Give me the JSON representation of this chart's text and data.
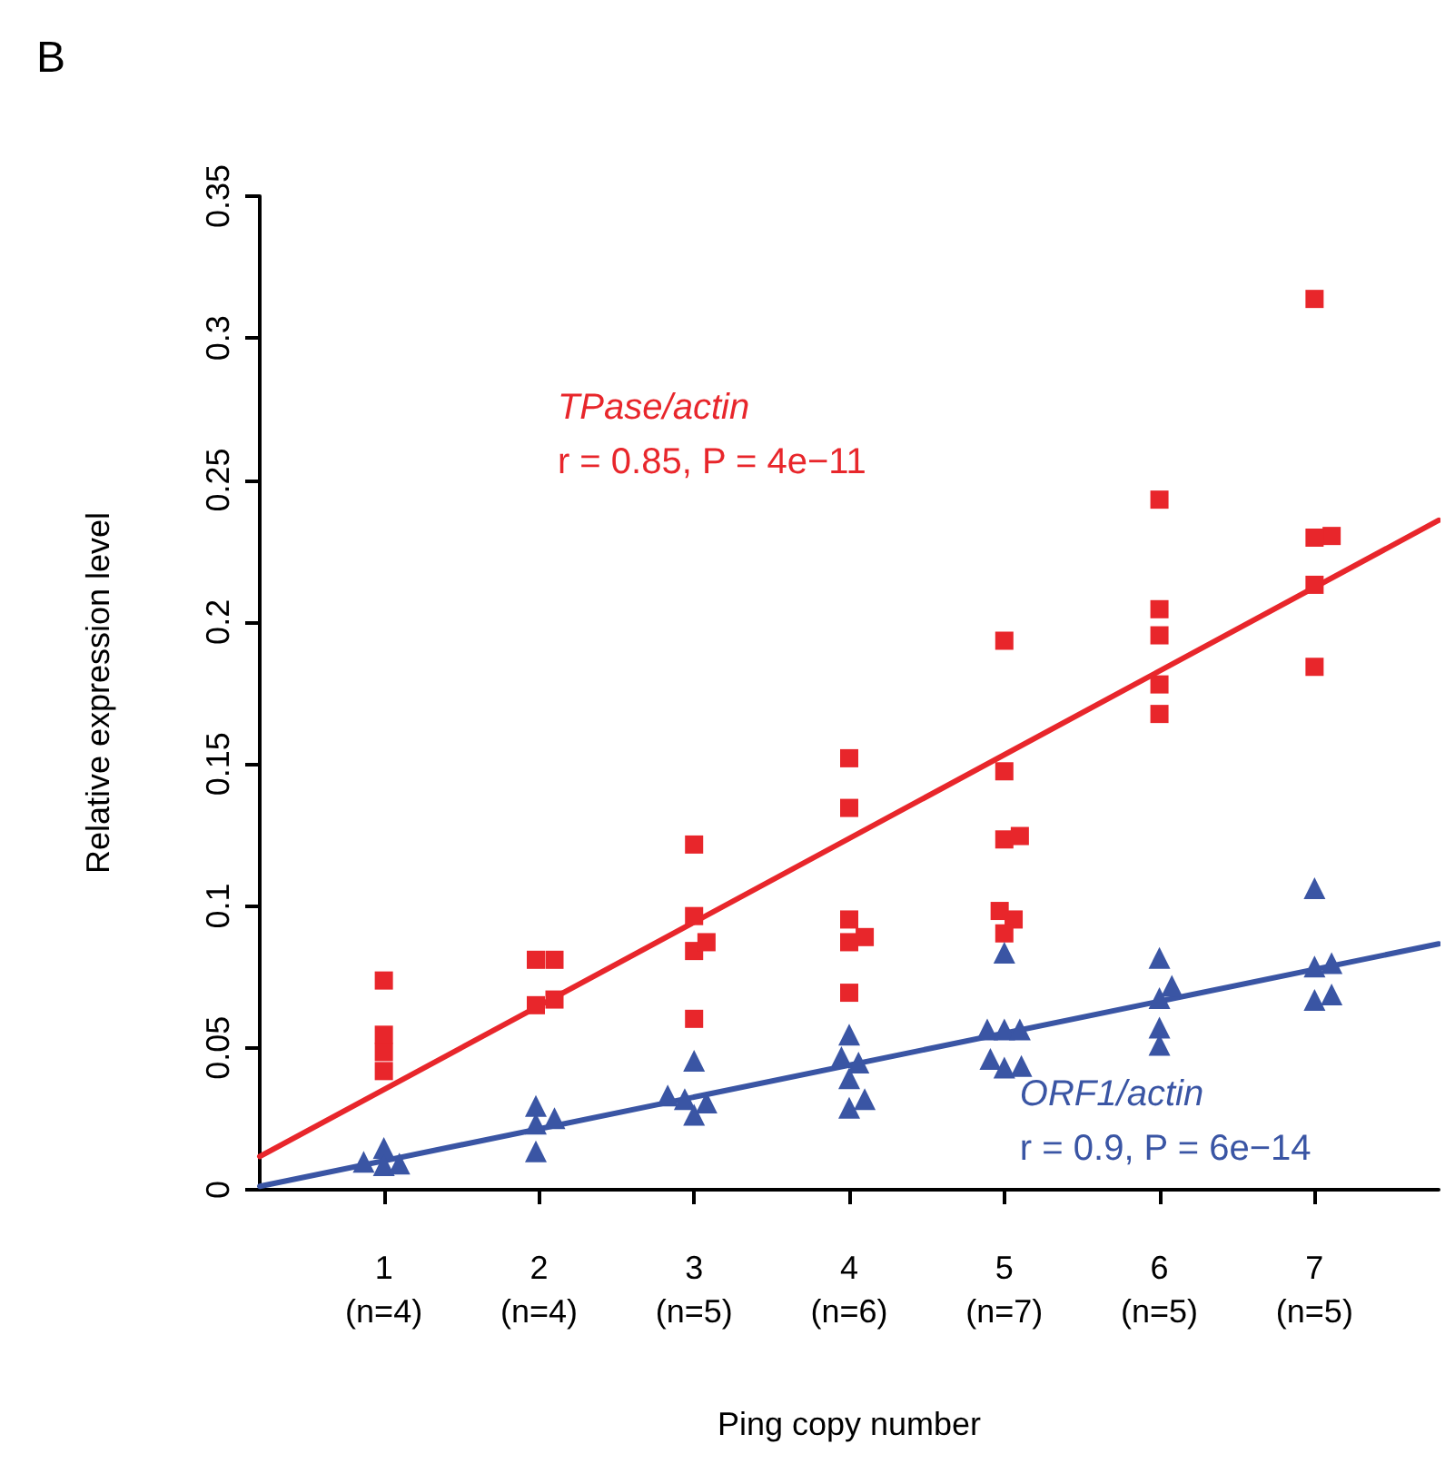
{
  "chart_data": {
    "type": "scatter",
    "xlabel": "Ping copy number",
    "ylabel": "Relative expression level",
    "xlim": [
      0.2,
      7.8
    ],
    "ylim": [
      0,
      0.35
    ],
    "xticks": [
      1,
      2,
      3,
      4,
      5,
      6,
      7
    ],
    "yticks": [
      0,
      0.05,
      0.1,
      0.15,
      0.2,
      0.25,
      0.3,
      0.35
    ],
    "grid": false,
    "series": [
      {
        "name": "TPase/actin",
        "color": "#e8262b",
        "marker": "square",
        "x": [
          1,
          1,
          1,
          1,
          1.98,
          2.1,
          1.98,
          2.1,
          3,
          3,
          3,
          3.08,
          3,
          4,
          4,
          4,
          4,
          4.1,
          4,
          5,
          5,
          5,
          5.1,
          4.97,
          5.06,
          5,
          6,
          6,
          6,
          6,
          6,
          7,
          7.11,
          7,
          7,
          7
        ],
        "values": [
          0.0737,
          0.0546,
          0.0485,
          0.0418,
          0.081,
          0.081,
          0.065,
          0.067,
          0.1216,
          0.0964,
          0.0841,
          0.0872,
          0.0602,
          0.152,
          0.1345,
          0.0952,
          0.0872,
          0.089,
          0.0694,
          0.1934,
          0.1474,
          0.1234,
          0.1246,
          0.0982,
          0.0952,
          0.0903,
          0.2431,
          0.2045,
          0.1953,
          0.178,
          0.1676,
          0.3138,
          0.2303,
          0.2297,
          0.2131,
          0.1842
        ]
      },
      {
        "name": "ORF1/actin",
        "color": "#3a55a4",
        "marker": "triangle",
        "x": [
          1,
          0.87,
          1,
          1.1,
          1.98,
          1.98,
          2.1,
          1.98,
          3,
          2.83,
          2.94,
          3.08,
          3,
          4,
          3.95,
          4.06,
          4,
          4,
          4.1,
          5,
          4.89,
          5,
          5.1,
          4.91,
          5,
          5.11,
          6,
          6.08,
          6,
          6,
          6,
          7,
          7,
          7.11,
          7,
          7.11
        ],
        "values": [
          0.0147,
          0.0098,
          0.0086,
          0.0092,
          0.0295,
          0.0233,
          0.0252,
          0.0135,
          0.0454,
          0.0332,
          0.0319,
          0.0307,
          0.0264,
          0.0546,
          0.0467,
          0.0448,
          0.0393,
          0.0289,
          0.0319,
          0.0835,
          0.0565,
          0.0565,
          0.0565,
          0.0461,
          0.043,
          0.0436,
          0.0817,
          0.0718,
          0.0675,
          0.0571,
          0.051,
          0.1062,
          0.0786,
          0.0798,
          0.0669,
          0.0688
        ]
      },
      {
        "type": "line",
        "color": "#e8262b",
        "x": [
          0.2,
          7.8
        ],
        "values": [
          0.0117,
          0.2358
        ]
      },
      {
        "type": "line",
        "color": "#3a55a4",
        "x": [
          0.2,
          7.8
        ],
        "values": [
          0.0012,
          0.0866
        ]
      }
    ],
    "annotations": [
      "B",
      "r = 0.85, P = 4e−11",
      "r = 0.9, P = 6e−14",
      "(n=4)",
      "(n=4)",
      "(n=5)",
      "(n=6)",
      "(n=7)",
      "(n=5)",
      "(n=5)"
    ]
  }
}
